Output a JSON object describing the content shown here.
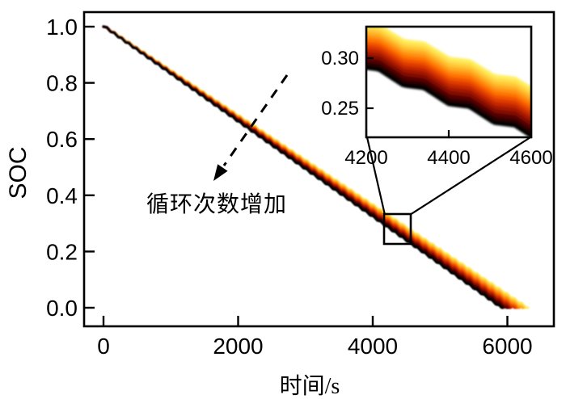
{
  "figure": {
    "kind": "battery-discharge-curves",
    "background": "#ffffff"
  },
  "chart_data": {
    "type": "line",
    "title": "",
    "xlabel": "时间/s",
    "ylabel": "SOC",
    "xlim": [
      -300,
      6700
    ],
    "ylim": [
      -0.072,
      1.058
    ],
    "grid": false,
    "legend": "none",
    "x_ticks": {
      "values": [
        0,
        2000,
        4000,
        6000
      ],
      "labels": [
        "0",
        "2000",
        "4000",
        "6000"
      ]
    },
    "y_ticks": {
      "values": [
        1.0,
        0.8,
        0.6,
        0.4,
        0.2,
        0.0
      ],
      "labels": [
        "1.0",
        "0.8",
        "0.6",
        "0.4",
        "0.2",
        "0.0"
      ]
    },
    "annotation": {
      "text": "循环次数增加",
      "arrow_from_xy": [
        2720,
        0.828
      ],
      "arrow_to_xy": [
        1630,
        0.451
      ],
      "arrow_style": "dashed"
    },
    "band": {
      "description": "family of stepped SOC discharge curves; color shifts from yellow (top curve) to black (bottom curve) as cycle number direction indicated by arrow",
      "n_curves": 14,
      "soc_start": 1.0,
      "t_end_top_curve_s": 6280,
      "t_end_bottom_curve_s": 5900,
      "step_period_s": 110,
      "step_dwell_s": 50,
      "dwell_slope_factor": 0.3,
      "colors_top_to_bottom": [
        "#fff066",
        "#ffdf4d",
        "#ffc838",
        "#ffad24",
        "#ff9012",
        "#ff7303",
        "#f25500",
        "#dd3a00",
        "#c22600",
        "#a11600",
        "#7d0a00",
        "#550400",
        "#2b0100",
        "#000000"
      ]
    },
    "series": [
      {
        "name": "top boundary curve (yellow)",
        "color": "#fff066",
        "points": [
          [
            0,
            1.0
          ],
          [
            500,
            0.92
          ],
          [
            1000,
            0.841
          ],
          [
            1500,
            0.761
          ],
          [
            2000,
            0.682
          ],
          [
            2500,
            0.602
          ],
          [
            3000,
            0.522
          ],
          [
            3500,
            0.443
          ],
          [
            4000,
            0.363
          ],
          [
            4500,
            0.283
          ],
          [
            5000,
            0.204
          ],
          [
            5500,
            0.124
          ],
          [
            6000,
            0.045
          ],
          [
            6280,
            0.0
          ]
        ]
      },
      {
        "name": "bottom boundary curve (black)",
        "color": "#000000",
        "points": [
          [
            0,
            1.0
          ],
          [
            500,
            0.915
          ],
          [
            1000,
            0.831
          ],
          [
            1500,
            0.746
          ],
          [
            2000,
            0.661
          ],
          [
            2500,
            0.576
          ],
          [
            3000,
            0.492
          ],
          [
            3500,
            0.407
          ],
          [
            4000,
            0.322
          ],
          [
            4500,
            0.237
          ],
          [
            5000,
            0.153
          ],
          [
            5500,
            0.068
          ],
          [
            5900,
            0.0
          ]
        ]
      }
    ],
    "inset": {
      "xlim": [
        4200,
        4600
      ],
      "ylim": [
        0.221,
        0.331
      ],
      "x_ticks": {
        "values": [
          4200,
          4400,
          4600
        ],
        "labels": [
          "4200",
          "4400",
          "4600"
        ]
      },
      "y_ticks": {
        "values": [
          0.3,
          0.25
        ],
        "labels": [
          "0.30",
          "0.25"
        ]
      },
      "source_region_xy": {
        "t": [
          4168,
          4564
        ],
        "soc": [
          0.227,
          0.333
        ]
      }
    }
  },
  "colors": {
    "axis": "#000000",
    "text": "#000000",
    "callout": "#000000"
  }
}
